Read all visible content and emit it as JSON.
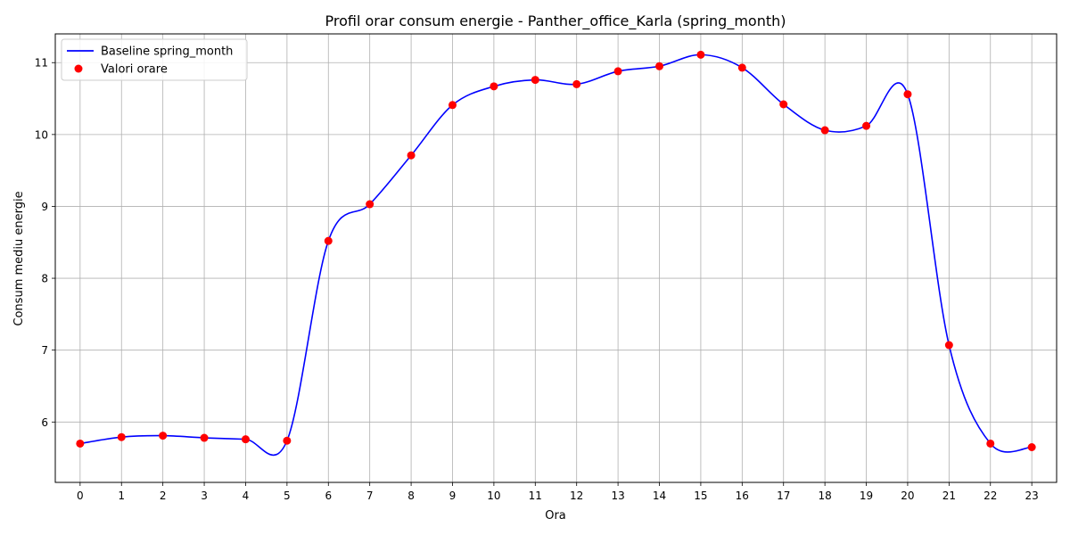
{
  "chart_data": {
    "type": "line",
    "title": "Profil orar consum energie - Panther_office_Karla (spring_month)",
    "xlabel": "Ora",
    "ylabel": "Consum mediu energie",
    "x": [
      0,
      1,
      2,
      3,
      4,
      5,
      6,
      7,
      8,
      9,
      10,
      11,
      12,
      13,
      14,
      15,
      16,
      17,
      18,
      19,
      20,
      21,
      22,
      23
    ],
    "xticks": [
      "0",
      "1",
      "2",
      "3",
      "4",
      "5",
      "6",
      "7",
      "8",
      "9",
      "10",
      "11",
      "12",
      "13",
      "14",
      "15",
      "16",
      "17",
      "18",
      "19",
      "20",
      "21",
      "22",
      "23"
    ],
    "xlim": [
      -0.6,
      23.6
    ],
    "ylim": [
      5.16,
      11.4
    ],
    "yticks": [
      6,
      7,
      8,
      9,
      10,
      11
    ],
    "grid": true,
    "legend_position": "top-left",
    "series": [
      {
        "name": "Baseline spring_month",
        "kind": "smooth-line",
        "color": "#0000ff",
        "values": [
          5.7,
          5.79,
          5.81,
          5.78,
          5.76,
          5.74,
          8.52,
          9.03,
          9.71,
          10.41,
          10.67,
          10.76,
          10.7,
          10.88,
          10.95,
          11.11,
          10.93,
          10.42,
          10.06,
          10.12,
          10.56,
          7.07,
          5.7,
          5.65
        ]
      },
      {
        "name": "Valori orare",
        "kind": "scatter",
        "color": "#ff0000",
        "values": [
          5.7,
          5.79,
          5.81,
          5.78,
          5.76,
          5.74,
          8.52,
          9.03,
          9.71,
          10.41,
          10.67,
          10.76,
          10.7,
          10.88,
          10.95,
          11.11,
          10.93,
          10.42,
          10.06,
          10.12,
          10.56,
          7.07,
          5.7,
          5.65
        ]
      }
    ]
  }
}
